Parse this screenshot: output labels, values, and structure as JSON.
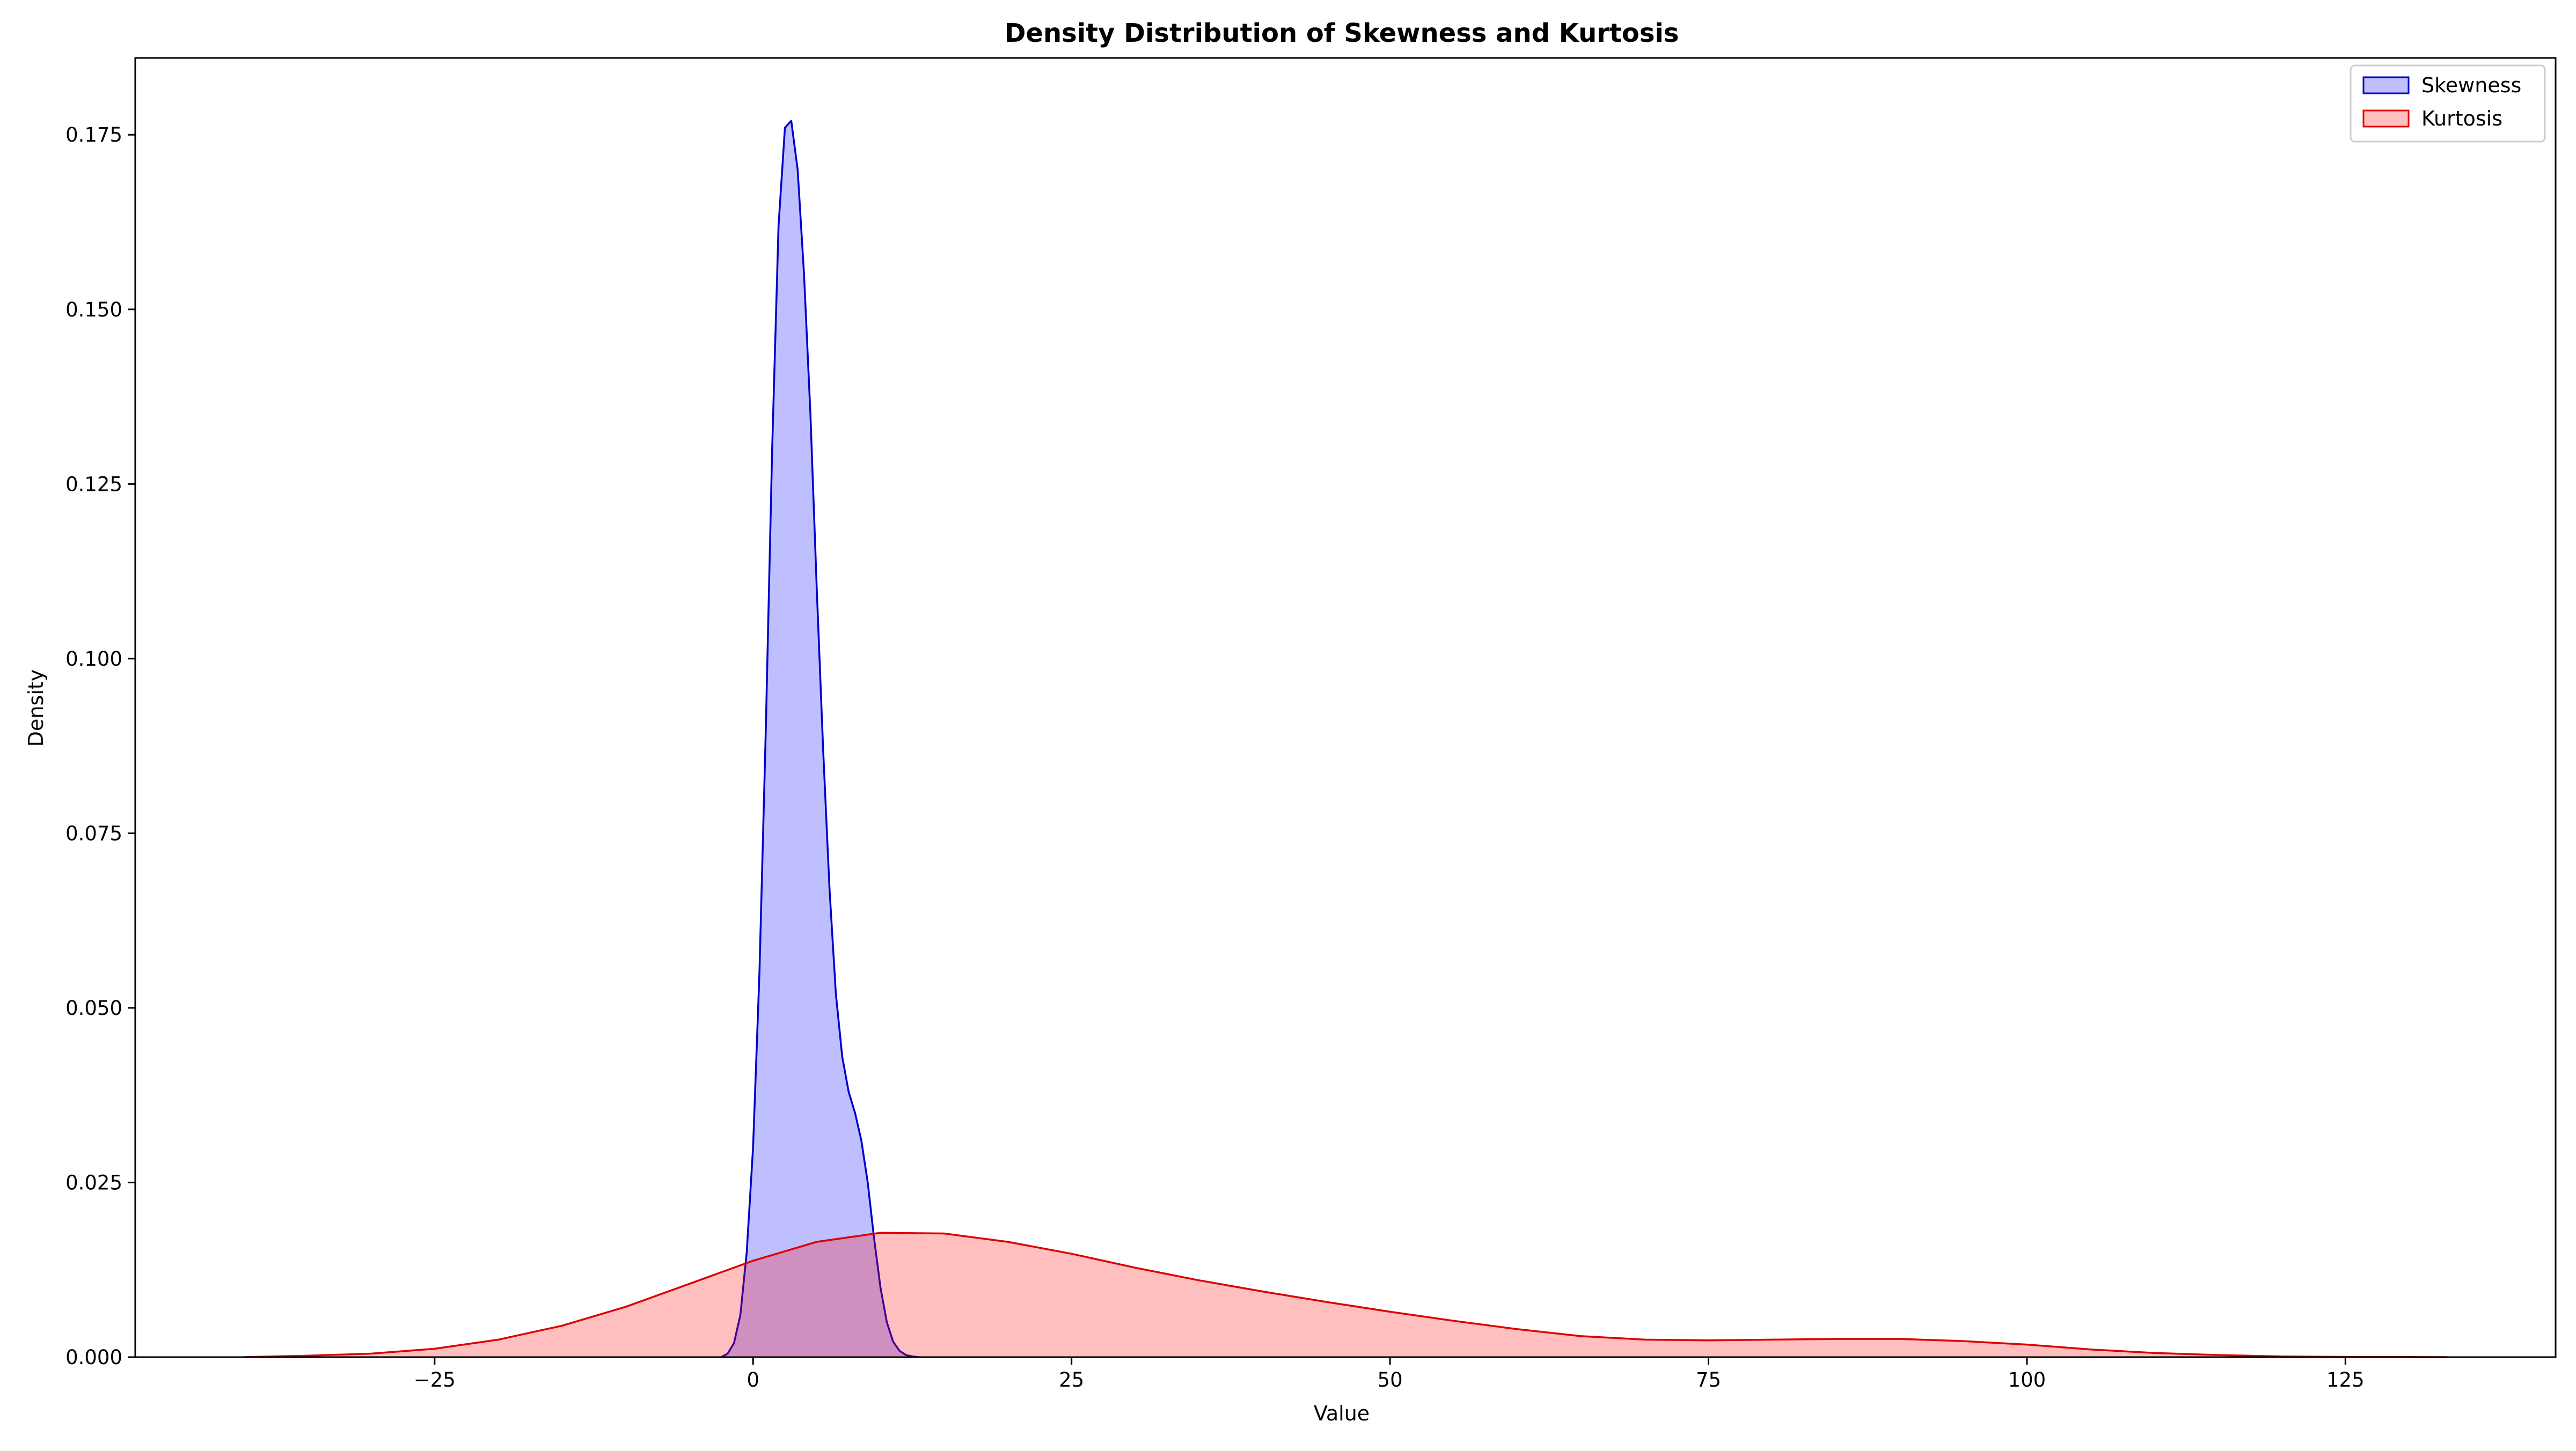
{
  "chart_data": {
    "type": "area",
    "title": "Density Distribution of Skewness and Kurtosis",
    "xlabel": "Value",
    "ylabel": "Density",
    "xlim": [
      -48.5,
      141.5
    ],
    "ylim": [
      0,
      0.186
    ],
    "xticks": [
      -25,
      0,
      25,
      50,
      75,
      100,
      125
    ],
    "xtick_labels": [
      "−25",
      "0",
      "25",
      "50",
      "75",
      "100",
      "125"
    ],
    "yticks": [
      0,
      0.025,
      0.05,
      0.075,
      0.1,
      0.125,
      0.15,
      0.175
    ],
    "ytick_labels": [
      "0.000",
      "0.025",
      "0.050",
      "0.075",
      "0.100",
      "0.125",
      "0.150",
      "0.175"
    ],
    "grid": false,
    "legend_position": "top-right",
    "series": [
      {
        "name": "Skewness",
        "line_color": "#0000cc",
        "fill_color": "#0000ff",
        "fill_opacity": 0.25,
        "x": [
          -2.5,
          -2,
          -1.5,
          -1,
          -0.5,
          0,
          0.5,
          1,
          1.5,
          2,
          2.5,
          3,
          3.5,
          4,
          4.5,
          5,
          5.5,
          6,
          6.5,
          7,
          7.5,
          8,
          8.5,
          9,
          9.5,
          10,
          10.5,
          11,
          11.5,
          12,
          12.5,
          13
        ],
        "y": [
          0,
          0.0005,
          0.002,
          0.006,
          0.015,
          0.03,
          0.055,
          0.09,
          0.13,
          0.162,
          0.176,
          0.177,
          0.17,
          0.155,
          0.135,
          0.11,
          0.087,
          0.067,
          0.052,
          0.043,
          0.038,
          0.035,
          0.031,
          0.025,
          0.017,
          0.01,
          0.005,
          0.0022,
          0.0009,
          0.0003,
          0.0001,
          0
        ]
      },
      {
        "name": "Kurtosis",
        "line_color": "#dd0000",
        "fill_color": "#ff0000",
        "fill_opacity": 0.25,
        "x": [
          -40,
          -35,
          -30,
          -25,
          -20,
          -15,
          -10,
          -5,
          0,
          5,
          10,
          15,
          20,
          25,
          30,
          35,
          40,
          45,
          50,
          55,
          60,
          65,
          70,
          75,
          80,
          85,
          90,
          95,
          100,
          105,
          110,
          115,
          120,
          125,
          133
        ],
        "y": [
          0,
          0.0002,
          0.0005,
          0.0012,
          0.0025,
          0.0045,
          0.0072,
          0.0105,
          0.0138,
          0.0165,
          0.0178,
          0.0177,
          0.0165,
          0.0148,
          0.0128,
          0.011,
          0.0094,
          0.0079,
          0.0065,
          0.0052,
          0.004,
          0.003,
          0.0025,
          0.0024,
          0.0025,
          0.0026,
          0.0026,
          0.0023,
          0.0018,
          0.0011,
          0.0006,
          0.0003,
          0.0001,
          3e-05,
          0
        ]
      }
    ]
  }
}
